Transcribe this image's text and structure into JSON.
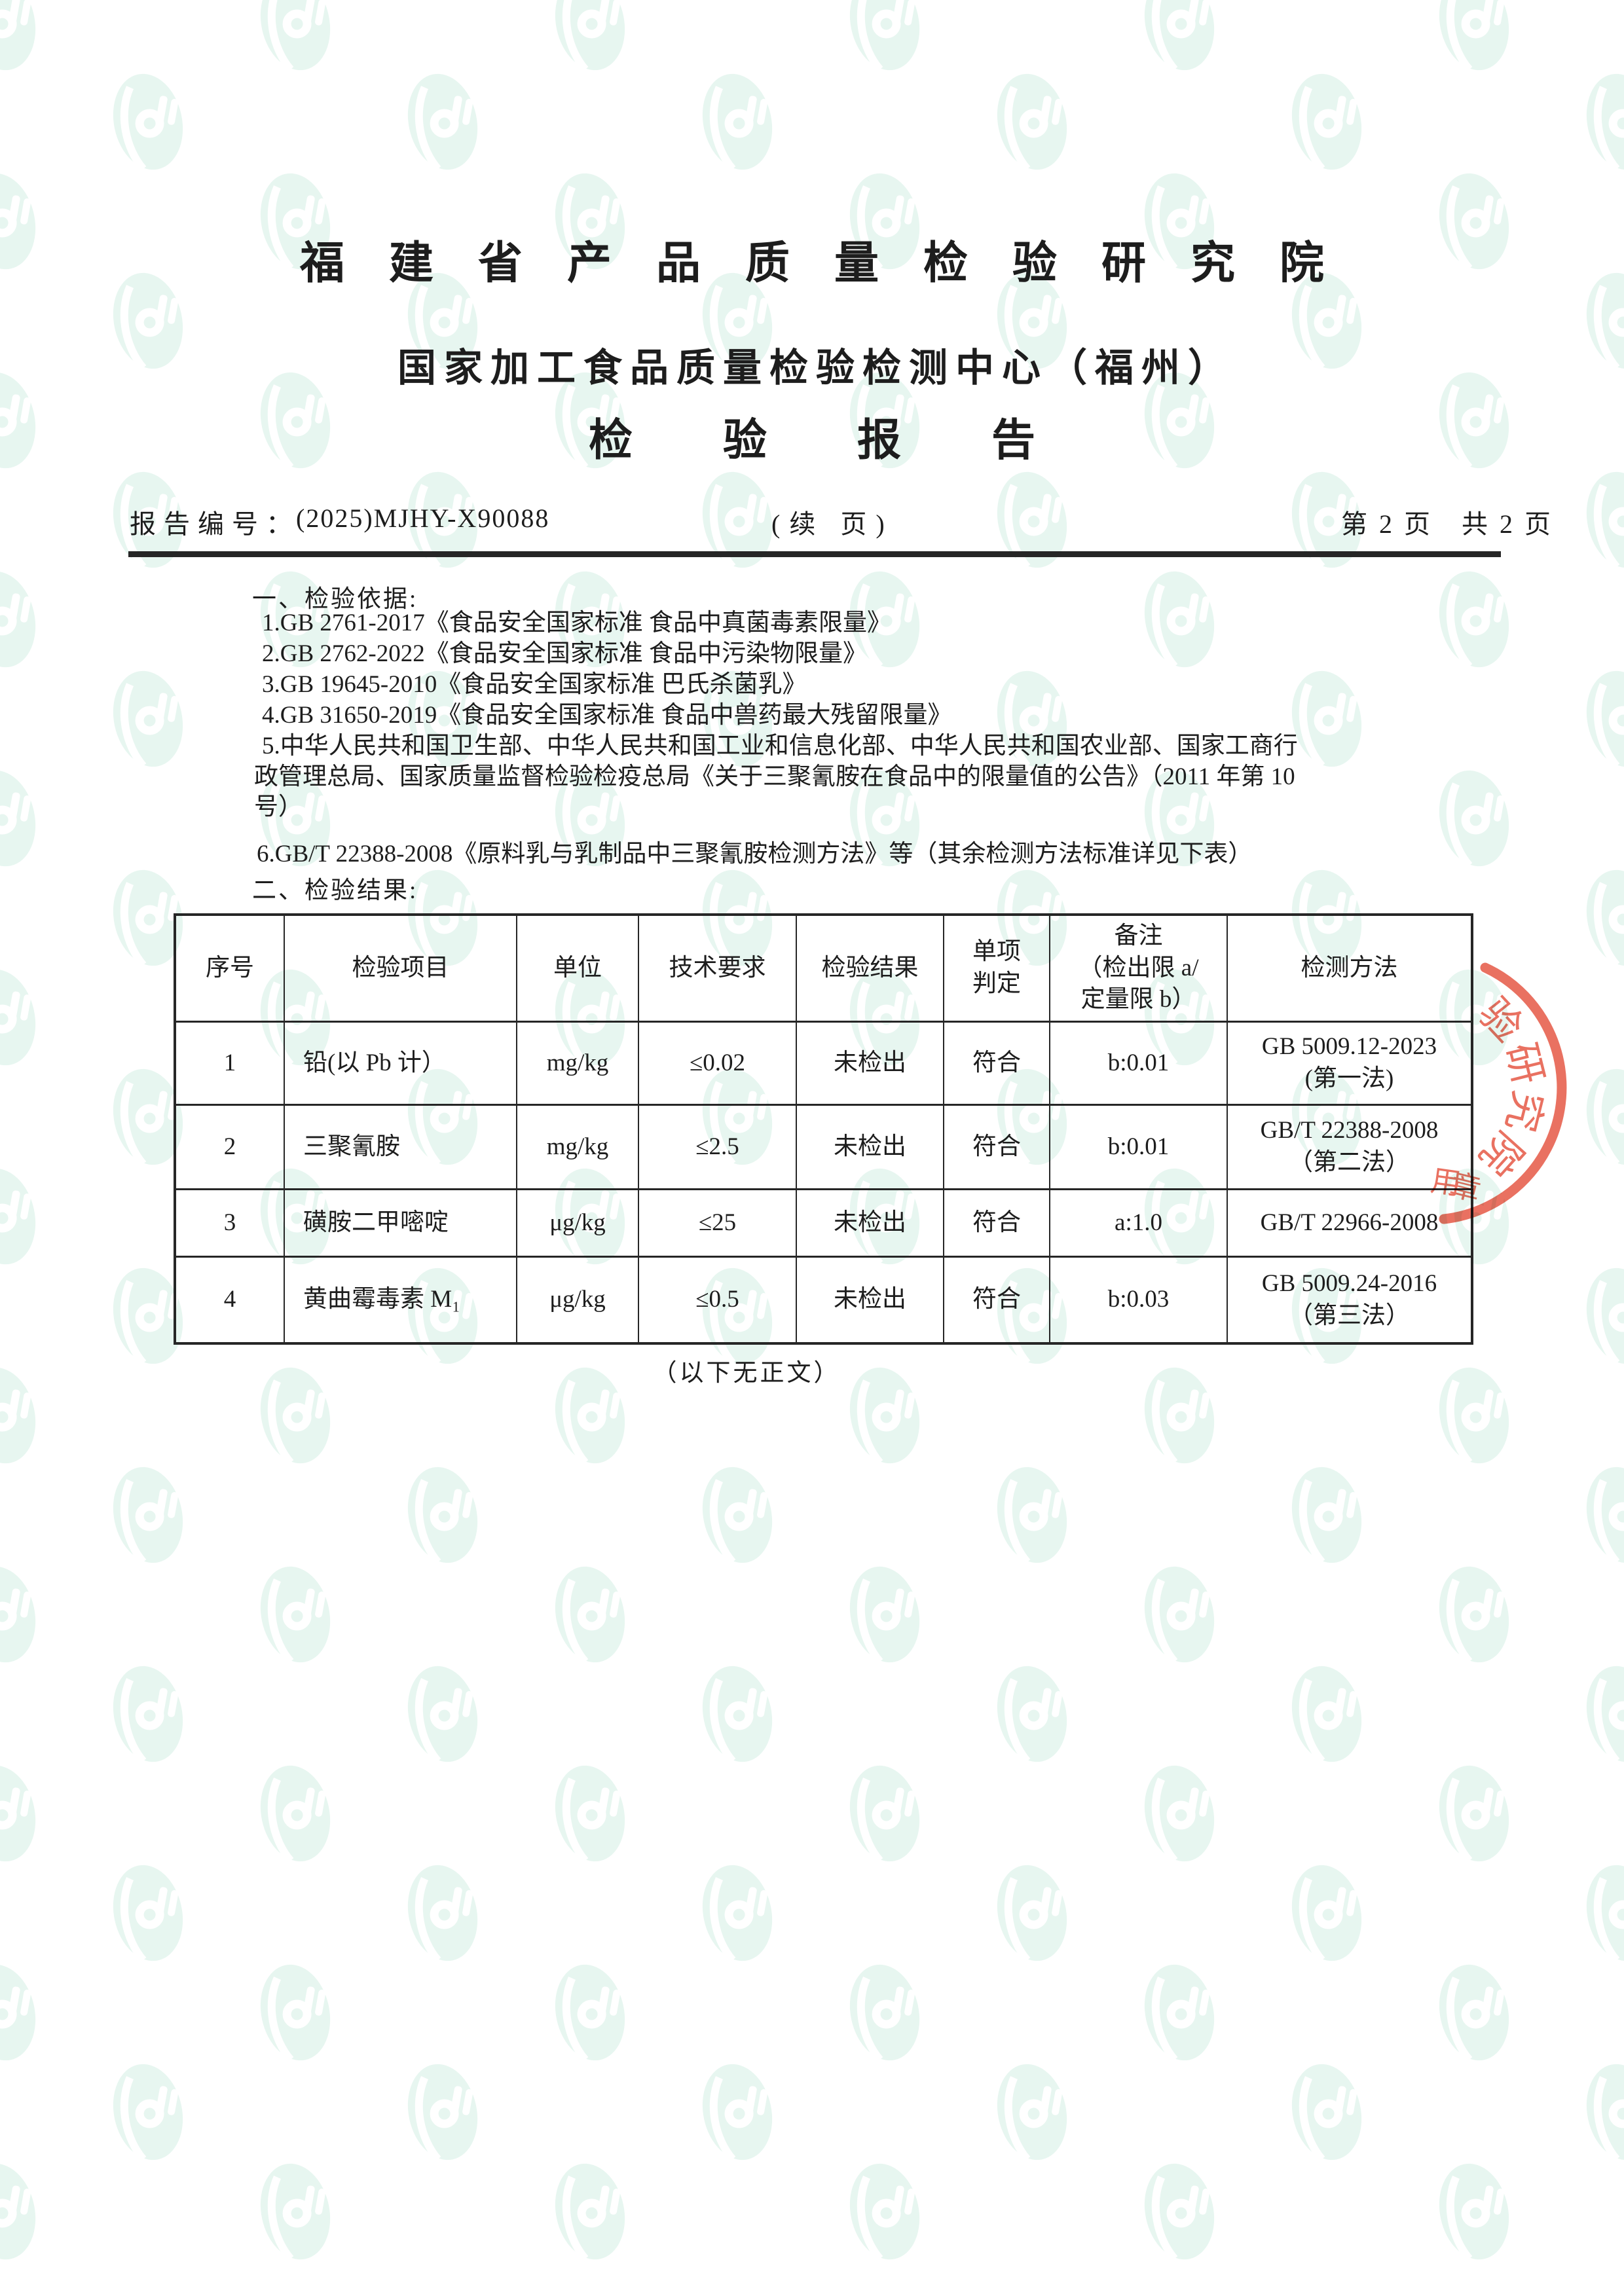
{
  "colors": {
    "text": "#1d1d1d",
    "table_border": "#262626",
    "stamp_red": "#e65845",
    "watermark_green": "#d5efe5"
  },
  "header": {
    "org_title": "福建省产品质量检验研究院",
    "center_name": "国家加工食品质量检验检测中心（福州）",
    "report_title": "检验报告"
  },
  "meta": {
    "label": "报告编号：",
    "number": "(2025)MJHY-X90088",
    "continuation": "(续 页)",
    "page_info": "第 2 页　共 2 页"
  },
  "basis": {
    "heading": "一、检验依据:",
    "lines": [
      "1.GB 2761-2017《食品安全国家标准 食品中真菌毒素限量》",
      "2.GB 2762-2022《食品安全国家标准 食品中污染物限量》",
      "3.GB 19645-2010《食品安全国家标准 巴氏杀菌乳》",
      "4.GB 31650-2019《食品安全国家标准 食品中兽药最大残留限量》",
      "5.中华人民共和国卫生部、中华人民共和国工业和信息化部、中华人民共和国农业部、国家工商行",
      "政管理总局、国家质量监督检验检疫总局《关于三聚氰胺在食品中的限量值的公告》（2011 年第 10",
      "号）",
      "6.GB/T 22388-2008《原料乳与乳制品中三聚氰胺检测方法》等（其余检测方法标准详见下表）"
    ]
  },
  "results": {
    "heading": "二、检验结果:",
    "table": {
      "columns": [
        "序号",
        "检验项目",
        "单位",
        "技术要求",
        "检验结果",
        "单项\n判定",
        "备注\n（检出限 a/\n定量限 b）",
        "检测方法"
      ],
      "rows": [
        [
          "1",
          "铅(以 Pb 计）",
          "mg/kg",
          "≤0.02",
          "未检出",
          "符合",
          "b:0.01",
          "GB 5009.12-2023\n(第一法)"
        ],
        [
          "2",
          "三聚氰胺",
          "mg/kg",
          "≤2.5",
          "未检出",
          "符合",
          "b:0.01",
          "GB/T 22388-2008\n（第二法）"
        ],
        [
          "3",
          "磺胺二甲嘧啶",
          "μg/kg",
          "≤25",
          "未检出",
          "符合",
          "a:1.0",
          "GB/T 22966-2008"
        ],
        [
          "4",
          "黄曲霉毒素 M₁",
          "μg/kg",
          "≤0.5",
          "未检出",
          "符合",
          "b:0.03",
          "GB 5009.24-2016\n（第三法）"
        ]
      ]
    },
    "footer_note": "（以下无正文）"
  },
  "stamp": {
    "arc_chars": [
      "验",
      "研",
      "究",
      "院"
    ],
    "bottom_chars": [
      "用",
      "章"
    ]
  }
}
